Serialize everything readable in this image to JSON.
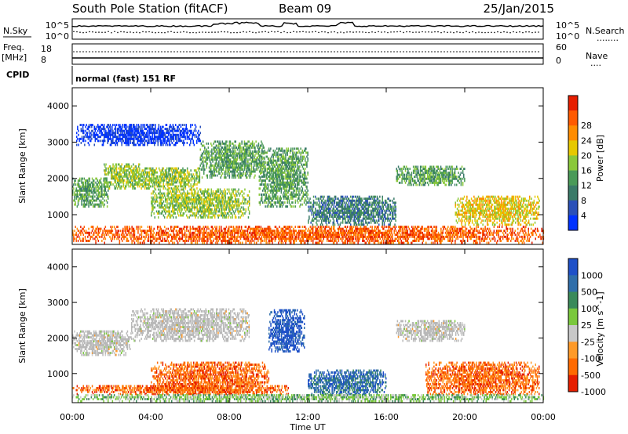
{
  "header": {
    "title": "South Pole Station (fitACF)",
    "beam": "Beam 09",
    "date": "25/Jan/2015"
  },
  "status_panels": {
    "nsky_label": "N.Sky",
    "nsearch_label": "N.Search",
    "nsearch_dots": "........",
    "noise_ticks": [
      "10^5",
      "10^0"
    ],
    "freq_label": "Freq.",
    "freq_unit": "[MHz]",
    "freq_ticks": [
      "18",
      "8"
    ],
    "nave_label": "Nave",
    "nave_dots": "....",
    "nave_ticks": [
      "60",
      "0"
    ],
    "cpid_label": "CPID",
    "cpid_value": "normal (fast) 151 RF"
  },
  "colors": {
    "background": "#ffffff",
    "axis": "#000000",
    "ground_scatter": "#b8b8b8"
  },
  "chart_data": [
    {
      "type": "heatmap",
      "name": "power",
      "xlabel": "Time UT",
      "ylabel": "Slant Range [km]",
      "xlim_hours": [
        0,
        24
      ],
      "ylim_km": [
        180,
        4500
      ],
      "xticks": [
        "00:00",
        "04:00",
        "08:00",
        "12:00",
        "16:00",
        "20:00",
        "00:00"
      ],
      "yticks": [
        1000,
        2000,
        3000,
        4000
      ],
      "colorbar": {
        "label": "Power [dB]",
        "ticks": [
          "4",
          "8",
          "12",
          "16",
          "20",
          "24",
          "28"
        ],
        "colors": [
          "#0032ff",
          "#2a50b8",
          "#3a7a68",
          "#4a9a58",
          "#8ac83a",
          "#e6c800",
          "#ff8c00",
          "#ff5a00",
          "#e61e00"
        ]
      },
      "echo_regions": [
        {
          "t": [
            0.0,
            1.8
          ],
          "r": [
            1200,
            2000
          ],
          "level": 3
        },
        {
          "t": [
            1.6,
            3.4
          ],
          "r": [
            1700,
            2400
          ],
          "level": 4
        },
        {
          "t": [
            3.0,
            6.5
          ],
          "r": [
            1700,
            2300
          ],
          "level": 4
        },
        {
          "t": [
            4.0,
            9.0
          ],
          "r": [
            900,
            1700
          ],
          "level": 4
        },
        {
          "t": [
            6.5,
            9.8
          ],
          "r": [
            2000,
            3000
          ],
          "level": 3
        },
        {
          "t": [
            9.5,
            12.0
          ],
          "r": [
            1200,
            2800
          ],
          "level": 3
        },
        {
          "t": [
            12.0,
            16.5
          ],
          "r": [
            700,
            1500
          ],
          "level": 2
        },
        {
          "t": [
            16.5,
            20.0
          ],
          "r": [
            1800,
            2300
          ],
          "level": 3
        },
        {
          "t": [
            19.5,
            23.8
          ],
          "r": [
            700,
            1500
          ],
          "level": 5
        },
        {
          "t": [
            0.2,
            6.5
          ],
          "r": [
            2900,
            3500
          ],
          "level": 0
        },
        {
          "t": [
            0.0,
            24.0
          ],
          "r": [
            200,
            650
          ],
          "level": 7
        }
      ]
    },
    {
      "type": "heatmap",
      "name": "velocity",
      "xlabel": "Time UT",
      "ylabel": "Slant Range [km]",
      "xlim_hours": [
        0,
        24
      ],
      "ylim_km": [
        180,
        4500
      ],
      "xticks": [
        "00:00",
        "04:00",
        "08:00",
        "12:00",
        "16:00",
        "20:00",
        "00:00"
      ],
      "yticks": [
        1000,
        2000,
        3000,
        4000
      ],
      "colorbar": {
        "label": "Velocity [m s^-1]",
        "ticks": [
          "1000",
          "500",
          "100",
          "25",
          "-25",
          "-100",
          "-500",
          "-1000"
        ],
        "colors": [
          "#1e50c8",
          "#2f6eaa",
          "#3a8a5a",
          "#7ac83c",
          "#c8c8c8",
          "#ff9a28",
          "#ff6a00",
          "#e61e00"
        ]
      },
      "echo_regions": [
        {
          "t": [
            0.0,
            3.0
          ],
          "r": [
            1500,
            2200
          ],
          "level": 4
        },
        {
          "t": [
            3.0,
            9.0
          ],
          "r": [
            1900,
            2800
          ],
          "level": 4
        },
        {
          "t": [
            4.0,
            10.0
          ],
          "r": [
            400,
            1300
          ],
          "level": 6
        },
        {
          "t": [
            0.0,
            11.0
          ],
          "r": [
            400,
            650
          ],
          "level": 6
        },
        {
          "t": [
            10.0,
            11.8
          ],
          "r": [
            1600,
            2800
          ],
          "level": 0
        },
        {
          "t": [
            12.0,
            16.0
          ],
          "r": [
            400,
            1100
          ],
          "level": 1
        },
        {
          "t": [
            16.5,
            20.0
          ],
          "r": [
            1900,
            2500
          ],
          "level": 4
        },
        {
          "t": [
            18.0,
            23.8
          ],
          "r": [
            400,
            1300
          ],
          "level": 6
        },
        {
          "t": [
            0.0,
            24.0
          ],
          "r": [
            200,
            400
          ],
          "level": 3
        }
      ]
    }
  ]
}
